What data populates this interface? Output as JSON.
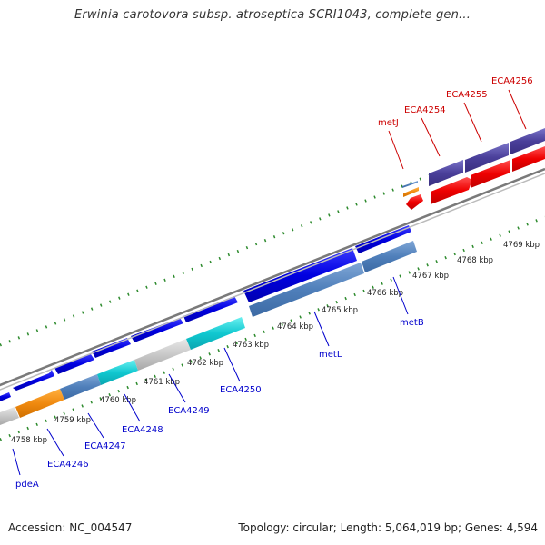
{
  "header": {
    "title": "Erwinia carotovora subsp. atroseptica SCRI1043, complete gen..."
  },
  "footer": {
    "accession": "Accession: NC_004547",
    "summary": "Topology: circular; Length: 5,064,019 bp; Genes: 4,594"
  },
  "colors": {
    "forward_label": "#0000cc",
    "reverse_label": "#cc0000",
    "backbone": "#8a8a8a",
    "tick": "#2e8b2e"
  },
  "ticks": [
    {
      "label": "4758 kbp",
      "kbp": 4758
    },
    {
      "label": "4759 kbp",
      "kbp": 4759
    },
    {
      "label": "4760 kbp",
      "kbp": 4760
    },
    {
      "label": "4761 kbp",
      "kbp": 4761
    },
    {
      "label": "4762 kbp",
      "kbp": 4762
    },
    {
      "label": "4763 kbp",
      "kbp": 4763
    },
    {
      "label": "4764 kbp",
      "kbp": 4764
    },
    {
      "label": "4765 kbp",
      "kbp": 4765
    },
    {
      "label": "4766 kbp",
      "kbp": 4766
    },
    {
      "label": "4767 kbp",
      "kbp": 4767
    },
    {
      "label": "4768 kbp",
      "kbp": 4768
    },
    {
      "label": "4769 kbp",
      "kbp": 4769
    }
  ],
  "gene_labels_forward": [
    {
      "name": "pdeA"
    },
    {
      "name": "ECA4246"
    },
    {
      "name": "ECA4247"
    },
    {
      "name": "ECA4248"
    },
    {
      "name": "ECA4249"
    },
    {
      "name": "ECA4250"
    },
    {
      "name": "metL"
    },
    {
      "name": "metB"
    }
  ],
  "gene_labels_reverse": [
    {
      "name": "metJ"
    },
    {
      "name": "ECA4254"
    },
    {
      "name": "ECA4255"
    },
    {
      "name": "ECA4256"
    }
  ]
}
